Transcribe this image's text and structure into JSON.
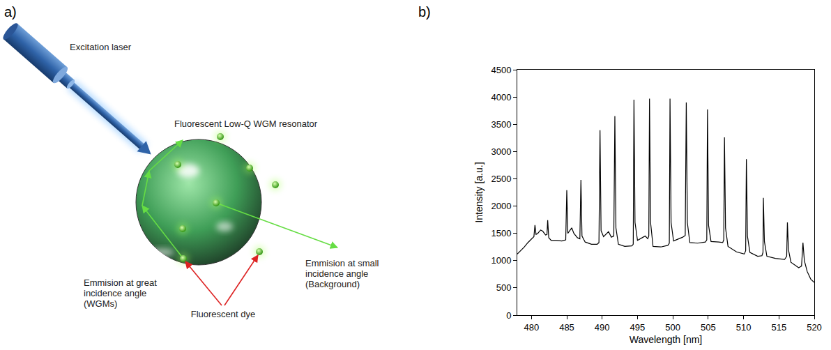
{
  "panel_labels": [
    "a)",
    "b)"
  ],
  "diagram": {
    "laser_label": "Excitation laser",
    "resonator_label": "Fluorescent Low-Q WGM resonator",
    "wgm_label": [
      "Emmision at great",
      "incidence angle",
      "(WGMs)"
    ],
    "background_label": [
      "Emmision at small",
      "incidence angle",
      "(Background)"
    ],
    "dye_label": "Fluorescent dye"
  },
  "chart_data": {
    "type": "line",
    "x_label": "Wavelength [nm]",
    "y_label": "Intensity [a.u.]",
    "color": "#000000",
    "grid": false,
    "xlim": [
      478,
      520
    ],
    "xticks": [
      480,
      485,
      490,
      495,
      500,
      505,
      510,
      515,
      520
    ],
    "ylim": [
      0,
      4500
    ],
    "yticks": [
      0,
      500,
      1000,
      1500,
      2000,
      2500,
      3000,
      3500,
      4000,
      4500
    ],
    "x": [
      478.0,
      478.5,
      479.0,
      479.5,
      480.0,
      480.35,
      480.5,
      480.65,
      480.9,
      481.3,
      481.6,
      482.0,
      482.2,
      482.3,
      482.45,
      482.8,
      483.5,
      484.3,
      484.85,
      485.0,
      485.15,
      485.4,
      485.7,
      486.0,
      486.5,
      486.85,
      487.0,
      487.15,
      487.6,
      488.5,
      489.3,
      489.55,
      489.7,
      489.85,
      490.2,
      490.9,
      491.3,
      491.65,
      491.8,
      491.95,
      492.3,
      493.2,
      494.2,
      494.4,
      494.5,
      494.65,
      495.0,
      495.8,
      496.1,
      496.45,
      496.6,
      496.7,
      496.85,
      497.2,
      498.3,
      499.3,
      499.5,
      499.6,
      499.75,
      500.1,
      501.0,
      501.4,
      501.75,
      501.9,
      502.05,
      502.4,
      503.5,
      504.6,
      504.8,
      504.9,
      505.05,
      505.4,
      506.5,
      507.05,
      507.2,
      507.3,
      507.45,
      507.8,
      509.0,
      510.1,
      510.3,
      510.4,
      510.55,
      510.9,
      512.0,
      512.6,
      512.75,
      512.8,
      512.95,
      513.3,
      514.5,
      515.8,
      516.1,
      516.2,
      516.35,
      516.7,
      517.8,
      518.2,
      518.4,
      518.6,
      519.0,
      519.5,
      520.0
    ],
    "values": [
      1120,
      1180,
      1250,
      1330,
      1400,
      1440,
      1650,
      1480,
      1500,
      1560,
      1540,
      1470,
      1480,
      1740,
      1420,
      1370,
      1370,
      1360,
      1380,
      2290,
      1500,
      1550,
      1600,
      1500,
      1420,
      1400,
      2480,
      1450,
      1340,
      1300,
      1300,
      1330,
      3390,
      1550,
      1440,
      1530,
      1430,
      1450,
      3650,
      1600,
      1300,
      1260,
      1270,
      1300,
      3950,
      1700,
      1370,
      1430,
      1450,
      1400,
      1450,
      3970,
      1700,
      1260,
      1250,
      1280,
      1320,
      3970,
      1700,
      1360,
      1410,
      1430,
      1460,
      3900,
      1700,
      1330,
      1320,
      1340,
      1380,
      3770,
      1650,
      1350,
      1340,
      1330,
      1380,
      3260,
      1600,
      1260,
      1160,
      1120,
      1180,
      2860,
      1450,
      1150,
      1080,
      1090,
      1150,
      2150,
      1350,
      1080,
      1040,
      1020,
      1080,
      1700,
      1200,
      970,
      870,
      900,
      1330,
      1000,
      800,
      660,
      600
    ]
  }
}
